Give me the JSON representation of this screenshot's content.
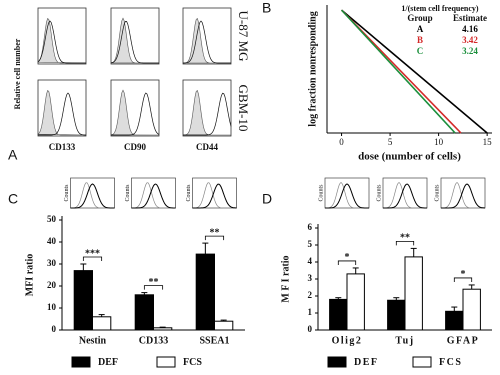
{
  "chart_data": [
    {
      "panel": "A",
      "type": "flow",
      "ylabel": "Relative cell number",
      "columns": [
        "CD133",
        "CD90",
        "CD44"
      ],
      "rows": [
        "U-87 MG",
        "GBM-10"
      ]
    },
    {
      "panel": "B",
      "type": "line",
      "xlabel": "dose (number of cells)",
      "ylabel": "log fraction nonresponding",
      "xlim": [
        -1.5,
        15.5
      ],
      "ylim": [
        -3.6,
        0.15
      ],
      "xticks": [
        0,
        5,
        10,
        15
      ],
      "table_title": "1/(stem cell frequency)",
      "table_headers": [
        "Group",
        "Estimate"
      ],
      "series": [
        {
          "name": "A",
          "color": "#000000",
          "estimate": 4.16,
          "x": [
            0,
            15
          ],
          "values": [
            0,
            -3.6
          ]
        },
        {
          "name": "B",
          "color": "#d42a2a",
          "estimate": 3.42,
          "x": [
            0,
            12.3
          ],
          "values": [
            0,
            -3.6
          ]
        },
        {
          "name": "C",
          "color": "#1b8f3c",
          "estimate": 3.24,
          "x": [
            0,
            11.7
          ],
          "values": [
            0,
            -3.6
          ]
        }
      ]
    },
    {
      "panel": "C",
      "type": "bar",
      "ylabel": "MFI ratio",
      "inset_label": "Counts",
      "categories": [
        "Nestin",
        "CD133",
        "SSEA1"
      ],
      "ylim": [
        0,
        50
      ],
      "yticks": [
        0,
        10,
        20,
        30,
        40,
        50
      ],
      "significance": [
        "***",
        "**",
        "**"
      ],
      "series": [
        {
          "name": "DEF",
          "color": "#000000",
          "values": [
            27,
            16,
            34.5
          ],
          "errors": [
            3,
            1,
            5
          ]
        },
        {
          "name": "FCS",
          "color": "#ffffff",
          "values": [
            6,
            1,
            4
          ],
          "errors": [
            1,
            0.3,
            0.5
          ]
        }
      ]
    },
    {
      "panel": "D",
      "type": "bar",
      "ylabel": "M F I ratio",
      "inset_label": "Counts",
      "categories": [
        "Olig2",
        "Tuj",
        "GFAP"
      ],
      "ylim": [
        0,
        6
      ],
      "yticks": [
        0,
        1,
        2,
        3,
        4,
        5,
        6
      ],
      "significance": [
        "*",
        "**",
        "*"
      ],
      "series": [
        {
          "name": "DEF",
          "color": "#000000",
          "values": [
            1.8,
            1.75,
            1.1
          ],
          "errors": [
            0.1,
            0.15,
            0.25
          ]
        },
        {
          "name": "FCS",
          "color": "#ffffff",
          "values": [
            3.3,
            4.3,
            2.4
          ],
          "errors": [
            0.35,
            0.5,
            0.25
          ]
        }
      ]
    }
  ]
}
